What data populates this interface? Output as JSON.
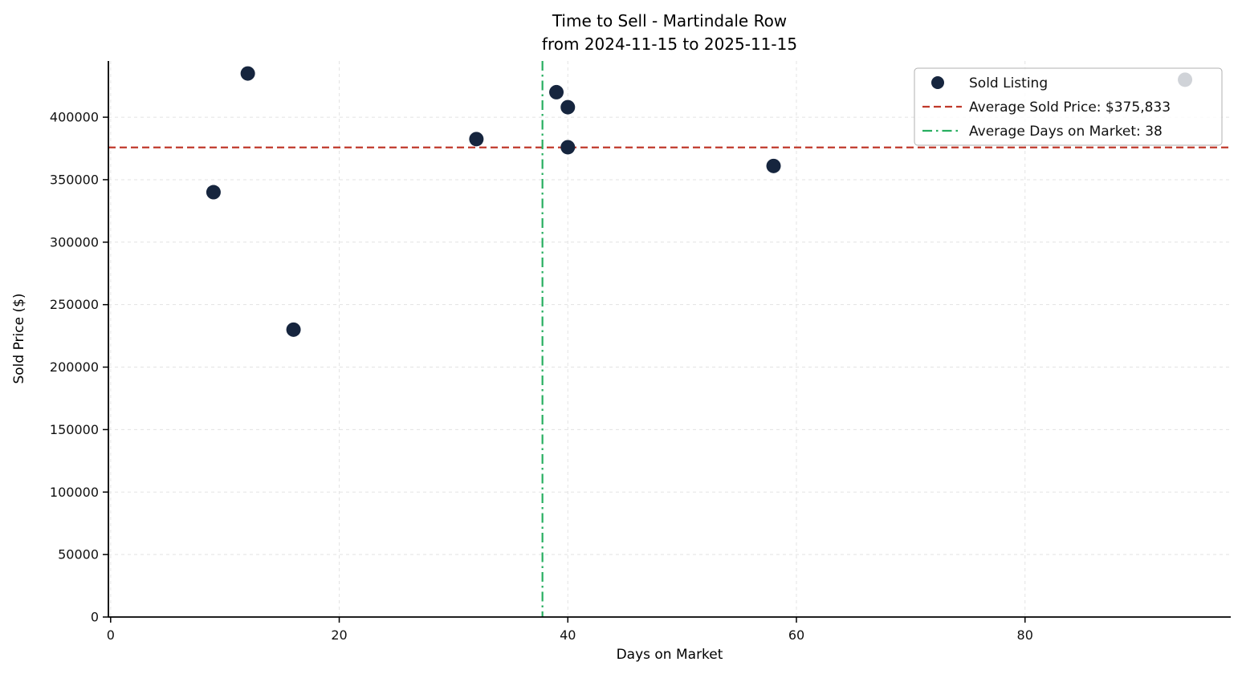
{
  "chart": {
    "title_line1": "Time to Sell - Martindale Row",
    "title_line2": "from 2024-11-15 to 2025-11-15",
    "xlabel": "Days on Market",
    "ylabel": "Sold Price ($)"
  },
  "chart_data": {
    "type": "scatter",
    "title": "Time to Sell - Martindale Row from 2024-11-15 to 2025-11-15",
    "xlabel": "Days on Market",
    "ylabel": "Sold Price ($)",
    "xlim": [
      0,
      98
    ],
    "ylim": [
      0,
      445000
    ],
    "x_ticks": [
      0,
      20,
      40,
      60,
      80
    ],
    "y_ticks": [
      0,
      50000,
      100000,
      150000,
      200000,
      250000,
      300000,
      350000,
      400000
    ],
    "grid": true,
    "grid_color": "#e3e3e3",
    "series": [
      {
        "name": "Sold Listing",
        "color": "#16253e",
        "marker": "circle",
        "points": [
          [
            9,
            340000
          ],
          [
            12,
            435000
          ],
          [
            16,
            230000
          ],
          [
            32,
            382500
          ],
          [
            39,
            420000
          ],
          [
            40,
            408000
          ],
          [
            40,
            376000
          ],
          [
            58,
            361000
          ],
          [
            94,
            430000
          ]
        ]
      }
    ],
    "reference_lines": [
      {
        "name": "avg-sold-price-line",
        "label": "Average Sold Price: $375,833",
        "axis": "y",
        "value": 375833,
        "color": "#c0392b",
        "style": "dashed"
      },
      {
        "name": "avg-days-on-market-line",
        "label": "Average Days on Market: 38",
        "axis": "x",
        "value": 37.78,
        "color": "#27ae60",
        "style": "dashdot"
      }
    ],
    "legend": {
      "position": "upper right",
      "entries": [
        {
          "type": "marker",
          "color": "#16253e",
          "label": "Sold Listing"
        },
        {
          "type": "dashed",
          "color": "#c0392b",
          "label": "Average Sold Price: $375,833"
        },
        {
          "type": "dashdot",
          "color": "#27ae60",
          "label": "Average Days on Market: 38"
        }
      ]
    }
  }
}
